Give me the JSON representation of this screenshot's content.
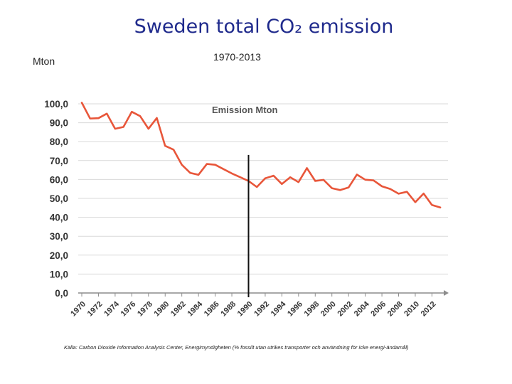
{
  "slide": {
    "title": "Sweden total CO₂ emission",
    "unit_label": "Mton",
    "period_label": "1970-2013",
    "source_note": "Källa: Carbon Dioxide Information Analysis Center, Energimyndigheten (% fossilt utan utrikes transporter och användning för icke energi-ändamål)"
  },
  "chart_data": {
    "type": "line",
    "title": "Emission Mton",
    "xlabel": "",
    "ylabel": "",
    "ylim": [
      0,
      100
    ],
    "y_ticks": [
      "0,0",
      "10,0",
      "20,0",
      "30,0",
      "40,0",
      "50,0",
      "60,0",
      "70,0",
      "80,0",
      "90,0",
      "100,0"
    ],
    "x_tick_labels": [
      "1970",
      "1972",
      "1974",
      "1976",
      "1978",
      "1980",
      "1982",
      "1984",
      "1986",
      "1988",
      "1990",
      "1992",
      "1994",
      "1996",
      "1998",
      "2000",
      "2002",
      "2004",
      "2006",
      "2008",
      "2010",
      "2012"
    ],
    "grid": true,
    "legend": "none",
    "series_color": "#e8563a",
    "marker_line_year": 1990,
    "x": [
      1970,
      1971,
      1972,
      1973,
      1974,
      1975,
      1976,
      1977,
      1978,
      1979,
      1980,
      1981,
      1982,
      1983,
      1984,
      1985,
      1986,
      1987,
      1988,
      1989,
      1990,
      1991,
      1992,
      1993,
      1994,
      1995,
      1996,
      1997,
      1998,
      1999,
      2000,
      2001,
      2002,
      2003,
      2004,
      2005,
      2006,
      2007,
      2008,
      2009,
      2010,
      2011,
      2012,
      2013
    ],
    "series": [
      {
        "values": [
          101.0,
          92.2,
          92.4,
          94.8,
          86.8,
          87.8,
          95.8,
          93.5,
          86.8,
          92.5,
          77.8,
          75.8,
          67.8,
          63.5,
          62.5,
          68.2,
          67.8,
          65.5,
          63.2,
          61.2,
          59.2,
          56.0,
          60.6,
          62.0,
          57.6,
          61.2,
          58.6,
          66.0,
          59.2,
          59.8,
          55.4,
          54.4,
          55.8,
          62.6,
          59.9,
          59.5,
          56.4,
          55.0,
          52.5,
          53.5,
          48.0,
          52.6,
          46.5,
          45.2
        ]
      }
    ]
  }
}
